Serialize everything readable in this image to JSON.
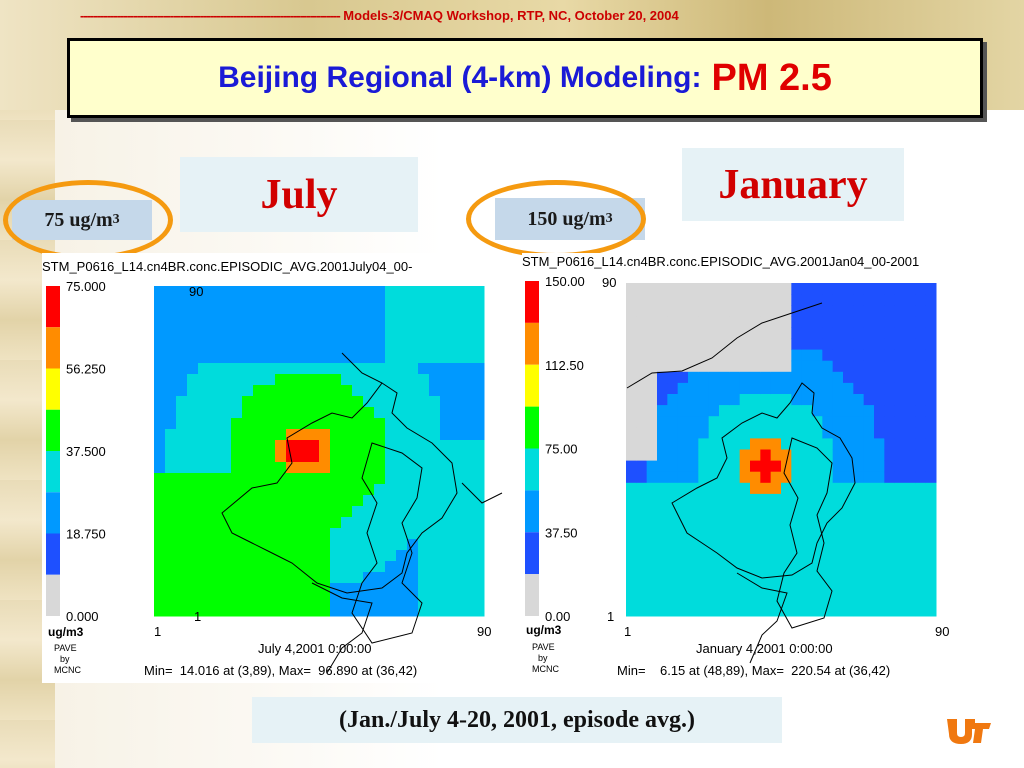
{
  "header": {
    "dashes": "------------------------------------------------------------------------------",
    "workshop": "Models-3/CMAQ Workshop, RTP, NC, October 20, 2004"
  },
  "title": {
    "main": "Beijing Regional (4-km) Modeling:",
    "pollutant": "PM 2.5"
  },
  "panels": {
    "july": {
      "label": "July",
      "scale_label": "75 ug/m",
      "scale_exp": "3",
      "filename": "STM_P0616_L14.cn4BR.conc.EPISODIC_AVG.2001July04_00-",
      "legend_ticks": [
        "75.000",
        "56.250",
        "37.500",
        "18.750",
        "0.000"
      ],
      "legend_max": 75,
      "unit": "ug/m3",
      "y_top": "90",
      "y_bottom": "1",
      "x_left": "1",
      "x_right": "90",
      "date": "July 4,2001 0:00:00",
      "minmax": "Min=  14.016 at (3,89), Max=  96.890 at (36,42)",
      "pave": "PAVE",
      "by": "by",
      "mcnc": "MCNC"
    },
    "january": {
      "label": "January",
      "scale_label": "150 ug/m",
      "scale_exp": "3",
      "filename": "STM_P0616_L14.cn4BR.conc.EPISODIC_AVG.2001Jan04_00-2001",
      "legend_ticks": [
        "150.00",
        "112.50",
        "75.00",
        "37.50",
        "0.00"
      ],
      "legend_max": 150,
      "unit": "ug/m3",
      "y_top": "90",
      "y_bottom": "1",
      "x_left": "1",
      "x_right": "90",
      "date": "January 4,2001 0:00:00",
      "minmax": "Min=    6.15 at (48,89), Max=  220.54 at (36,42)",
      "pave": "PAVE",
      "by": "by",
      "mcnc": "MCNC"
    }
  },
  "legend_colors": [
    "#ff0000",
    "#ff8c00",
    "#ffff00",
    "#00ff00",
    "#00dcdc",
    "#0099ff",
    "#1e50ff",
    "#d8d8d8"
  ],
  "caption": "(Jan./July 4-20, 2001, episode avg.)",
  "colors": {
    "accent_orange": "#f59a10",
    "title_blue": "#1a1ad6",
    "title_red": "#e00000"
  }
}
